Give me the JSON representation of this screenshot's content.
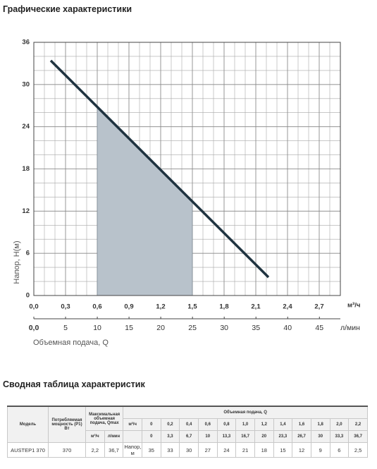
{
  "chart_data": {
    "type": "line",
    "title": "Графические характеристики",
    "x_label": "Объемная подача, Q",
    "x_unit": "м³/ч",
    "x2_unit": "л/мин",
    "y_label": "Напор, H(м)",
    "x": [
      0.16,
      2.22
    ],
    "values": [
      33.4,
      2.6
    ],
    "color": "#1f3340",
    "xlim": [
      0,
      2.9
    ],
    "xticks": [
      {
        "value": 0,
        "label": "0,0"
      },
      {
        "value": 0.3,
        "label": "0,3"
      },
      {
        "value": 0.6,
        "label": "0,6"
      },
      {
        "value": 0.9,
        "label": "0,9"
      },
      {
        "value": 1.2,
        "label": "1,2"
      },
      {
        "value": 1.5,
        "label": "1,5"
      },
      {
        "value": 1.8,
        "label": "1,8"
      },
      {
        "value": 2.1,
        "label": "2,1"
      },
      {
        "value": 2.4,
        "label": "2,4"
      },
      {
        "value": 2.7,
        "label": "2,7"
      }
    ],
    "x2lim": [
      0,
      48.3
    ],
    "x2ticks": [
      {
        "value": 0,
        "label": "0,0"
      },
      5,
      10,
      15,
      20,
      25,
      30,
      35,
      40,
      45
    ],
    "ylim": [
      0,
      36
    ],
    "yticks": [
      0,
      6,
      12,
      18,
      24,
      30,
      36
    ],
    "grid": true,
    "shaded_range": [
      0.6,
      1.5
    ],
    "shade_color": "#b8c2cb"
  },
  "table": {
    "title": "Сводная таблица характеристик",
    "headers": {
      "model": "Модель",
      "power": "Потребляемая мощность (Р1) Вт",
      "qmax": "Максимальная объемная подача, Qmax",
      "qmax_units": [
        "м³/ч",
        "л/мин"
      ],
      "flow": "Объемная подача, Q",
      "flow_unit": "м³/ч",
      "flow_m3h": [
        "0",
        "0,2",
        "0,4",
        "0,6",
        "0,8",
        "1,0",
        "1,2",
        "1,4",
        "1,6",
        "1,8",
        "2,0",
        "2,2"
      ],
      "flow_lpm": [
        "0",
        "3,3",
        "6,7",
        "10",
        "13,3",
        "16,7",
        "20",
        "23,3",
        "26,7",
        "30",
        "33,3",
        "36,7"
      ]
    },
    "rows": [
      [
        "AUSTEP1 370",
        "370",
        "2,2",
        "36,7",
        "Напор, м",
        "35",
        "33",
        "30",
        "27",
        "24",
        "21",
        "18",
        "15",
        "12",
        "9",
        "6",
        "2,5"
      ]
    ]
  }
}
